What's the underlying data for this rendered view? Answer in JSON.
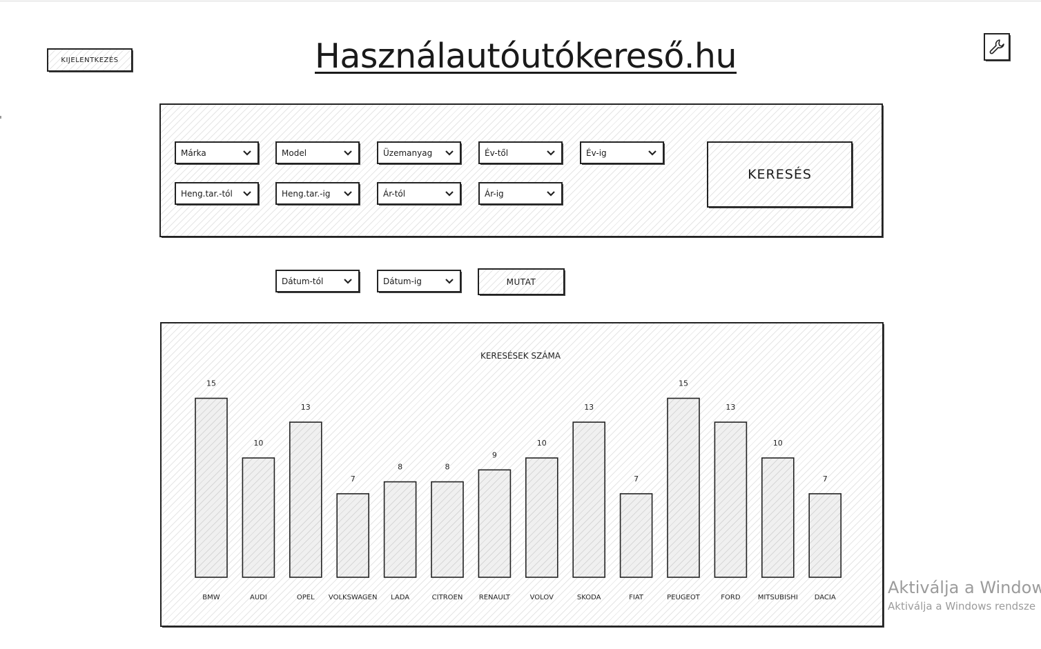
{
  "header": {
    "logout_label": "KIJELENTKEZÉS",
    "site_title": "Használautóutókereső.hu",
    "settings_icon": "wrench-icon"
  },
  "filters": {
    "row1": [
      "Márka",
      "Model",
      "Üzemanyag",
      "Év-től",
      "Év-ig"
    ],
    "row2": [
      "Heng.tar.-tól",
      "Heng.tar.-ig",
      "Ár-tól",
      "Ár-ig"
    ],
    "search_label": "KERESÉS",
    "dropdown_icon": "chevron-down-icon"
  },
  "date_filter": {
    "from_label": "Dátum-tól",
    "to_label": "Dátum-ig",
    "show_label": "MUTAT"
  },
  "chart_data": {
    "type": "bar",
    "title": "KERESÉSEK SZÁMA",
    "categories": [
      "BMW",
      "AUDI",
      "OPEL",
      "VOLKSWAGEN",
      "LADA",
      "CITROEN",
      "RENAULT",
      "VOLOV",
      "SKODA",
      "FIAT",
      "PEUGEOT",
      "FORD",
      "MITSUBISHI",
      "DACIA"
    ],
    "values": [
      15,
      10,
      13,
      7,
      8,
      8,
      9,
      10,
      13,
      7,
      15,
      13,
      10,
      7
    ],
    "grid": false,
    "legend": "none"
  },
  "watermark": {
    "line1": "Aktiválja a Windows",
    "line2": "Aktiválja a Windows rendsze"
  }
}
